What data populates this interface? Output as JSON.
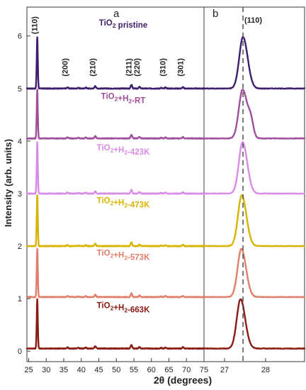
{
  "chart_data": {
    "type": "line",
    "ylabel": "Intensity (arb. units)",
    "xlabel": "2θ (degrees)",
    "ylim": [
      -0.2,
      6.55
    ],
    "y_ticks": [
      0,
      1,
      2,
      3,
      4,
      5,
      6
    ],
    "panels": [
      {
        "label": "a",
        "xlim": [
          24.5,
          75
        ],
        "x_ticks": [
          25,
          30,
          35,
          40,
          45,
          50,
          55,
          60,
          65,
          70,
          75
        ],
        "peak_labels": [
          {
            "text": "(110)",
            "x": 27.4,
            "y": 6.15
          },
          {
            "text": "(200)",
            "x": 36.1,
            "y": 5.35
          },
          {
            "text": "(210)",
            "x": 44.0,
            "y": 5.35
          },
          {
            "text": "(211)",
            "x": 54.3,
            "y": 5.35
          },
          {
            "text": "(220)",
            "x": 56.6,
            "y": 5.35
          },
          {
            "text": "(310)",
            "x": 64.0,
            "y": 5.35
          },
          {
            "text": "(301)",
            "x": 69.0,
            "y": 5.35
          }
        ],
        "peaks": [
          {
            "x": 27.45,
            "h": 1.0,
            "w": 0.22
          },
          {
            "x": 36.1,
            "h": 0.02,
            "w": 0.3
          },
          {
            "x": 39.2,
            "h": 0.012,
            "w": 0.3
          },
          {
            "x": 41.3,
            "h": 0.018,
            "w": 0.3
          },
          {
            "x": 44.0,
            "h": 0.045,
            "w": 0.3
          },
          {
            "x": 54.3,
            "h": 0.07,
            "w": 0.3
          },
          {
            "x": 56.6,
            "h": 0.03,
            "w": 0.3
          },
          {
            "x": 62.8,
            "h": 0.012,
            "w": 0.3
          },
          {
            "x": 64.0,
            "h": 0.02,
            "w": 0.3
          },
          {
            "x": 69.0,
            "h": 0.025,
            "w": 0.3
          }
        ]
      },
      {
        "label": "b",
        "xlim": [
          26.5,
          28.95
        ],
        "x_ticks": [
          27,
          28
        ],
        "reference_line_x": 27.45,
        "peak_labels": [
          {
            "text": "(110)",
            "x": 27.7,
            "y": 6.25
          }
        ]
      }
    ],
    "series": [
      {
        "name": "TiO2 pristine",
        "label_main": "TiO",
        "label_sub": "2",
        "label_rest": " pristine",
        "color": "#3e1e6e",
        "offset": 5.0,
        "peak_height": 0.98,
        "peak_center": 27.45,
        "shoulder": 0.0,
        "label_y": 6.2
      },
      {
        "name": "TiO2+H2-RT",
        "label_main": "TiO",
        "label_sub": "2",
        "label_rest": "+H",
        "label_sub2": "2",
        "label_rest2": "-RT",
        "color": "#a0509a",
        "offset": 4.05,
        "peak_height": 0.93,
        "peak_center": 27.44,
        "shoulder": 0.28,
        "label_y": 4.8
      },
      {
        "name": "TiO2+H2-423K",
        "label_main": "TiO",
        "label_sub": "2",
        "label_rest": "+H",
        "label_sub2": "2",
        "label_rest2": "-423K",
        "color": "#d98be8",
        "offset": 3.0,
        "peak_height": 0.98,
        "peak_center": 27.44,
        "shoulder": 0.0,
        "label_y": 3.82
      },
      {
        "name": "TiO2+H2-473K",
        "label_main": "TiO",
        "label_sub": "2",
        "label_rest": "+H",
        "label_sub2": "2",
        "label_rest2": "-473K",
        "color": "#d6b400",
        "offset": 2.0,
        "peak_height": 0.97,
        "peak_center": 27.42,
        "shoulder": 0.0,
        "label_y": 2.82
      },
      {
        "name": "TiO2+H2-573K",
        "label_main": "TiO",
        "label_sub": "2",
        "label_rest": "+H",
        "label_sub2": "2",
        "label_rest2": "-573K",
        "color": "#e0806a",
        "offset": 1.03,
        "peak_height": 0.92,
        "peak_center": 27.41,
        "shoulder": 0.0,
        "label_y": 1.82
      },
      {
        "name": "TiO2+H2-663K",
        "label_main": "TiO",
        "label_sub": "2",
        "label_rest": "+H",
        "label_sub2": "2",
        "label_rest2": "-663K",
        "color": "#8b1c14",
        "offset": 0.05,
        "peak_height": 0.94,
        "peak_center": 27.39,
        "shoulder": 0.0,
        "label_y": 0.82
      }
    ],
    "grid": false,
    "legend": "none"
  }
}
